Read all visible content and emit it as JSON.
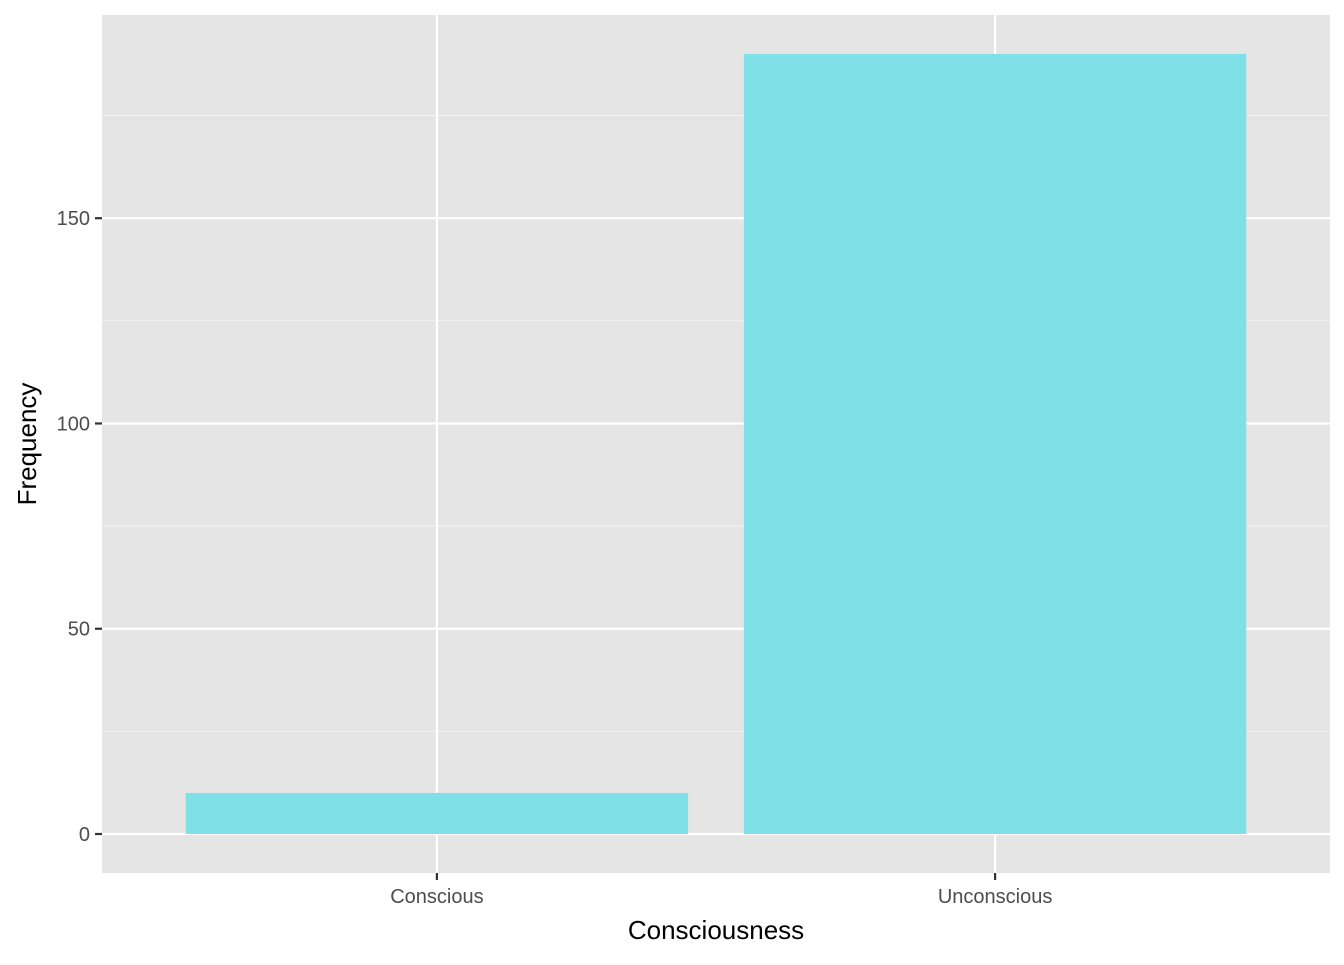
{
  "chart_data": {
    "type": "bar",
    "title": "",
    "xlabel": "Consciousness",
    "ylabel": "Frequency",
    "categories": [
      "Conscious",
      "Unconscious"
    ],
    "values": [
      10,
      190
    ],
    "ylim": [
      -9.5,
      199.5
    ],
    "yticks": [
      0,
      50,
      100,
      150
    ],
    "ytick_labels": [
      "0",
      "50",
      "100",
      "150"
    ],
    "grid": true,
    "legend": "none",
    "colors": {
      "bar_fill": "#80E0E8",
      "panel_background": "#E5E5E5",
      "grid_major": "#FFFFFF",
      "grid_minor": "#F2F2F2",
      "tick_mark": "#333333",
      "tick_label": "#4D4D4D",
      "axis_title": "#000000"
    }
  }
}
